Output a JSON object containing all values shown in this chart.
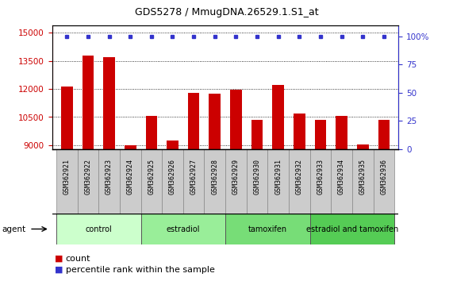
{
  "title": "GDS5278 / MmugDNA.26529.1.S1_at",
  "samples": [
    "GSM362921",
    "GSM362922",
    "GSM362923",
    "GSM362924",
    "GSM362925",
    "GSM362926",
    "GSM362927",
    "GSM362928",
    "GSM362929",
    "GSM362930",
    "GSM362931",
    "GSM362932",
    "GSM362933",
    "GSM362934",
    "GSM362935",
    "GSM362936"
  ],
  "counts": [
    12150,
    13800,
    13700,
    9000,
    10550,
    9250,
    11800,
    11750,
    11950,
    10350,
    12200,
    10700,
    10350,
    10550,
    9050,
    10350
  ],
  "ylim_left": [
    8800,
    15400
  ],
  "ylim_right": [
    0,
    110
  ],
  "yticks_left": [
    9000,
    10500,
    12000,
    13500,
    15000
  ],
  "yticks_right": [
    0,
    25,
    50,
    75,
    100
  ],
  "bar_color": "#cc0000",
  "dot_color": "#3333cc",
  "groups": [
    {
      "label": "control",
      "start": 0,
      "end": 4,
      "color": "#ccffcc"
    },
    {
      "label": "estradiol",
      "start": 4,
      "end": 8,
      "color": "#99ee99"
    },
    {
      "label": "tamoxifen",
      "start": 8,
      "end": 12,
      "color": "#77dd77"
    },
    {
      "label": "estradiol and tamoxifen",
      "start": 12,
      "end": 16,
      "color": "#55cc55"
    }
  ],
  "agent_label": "agent",
  "legend_count_label": "count",
  "legend_percentile_label": "percentile rank within the sample",
  "tick_bg_color": "#cccccc",
  "xticklabel_fontsize": 6.0
}
